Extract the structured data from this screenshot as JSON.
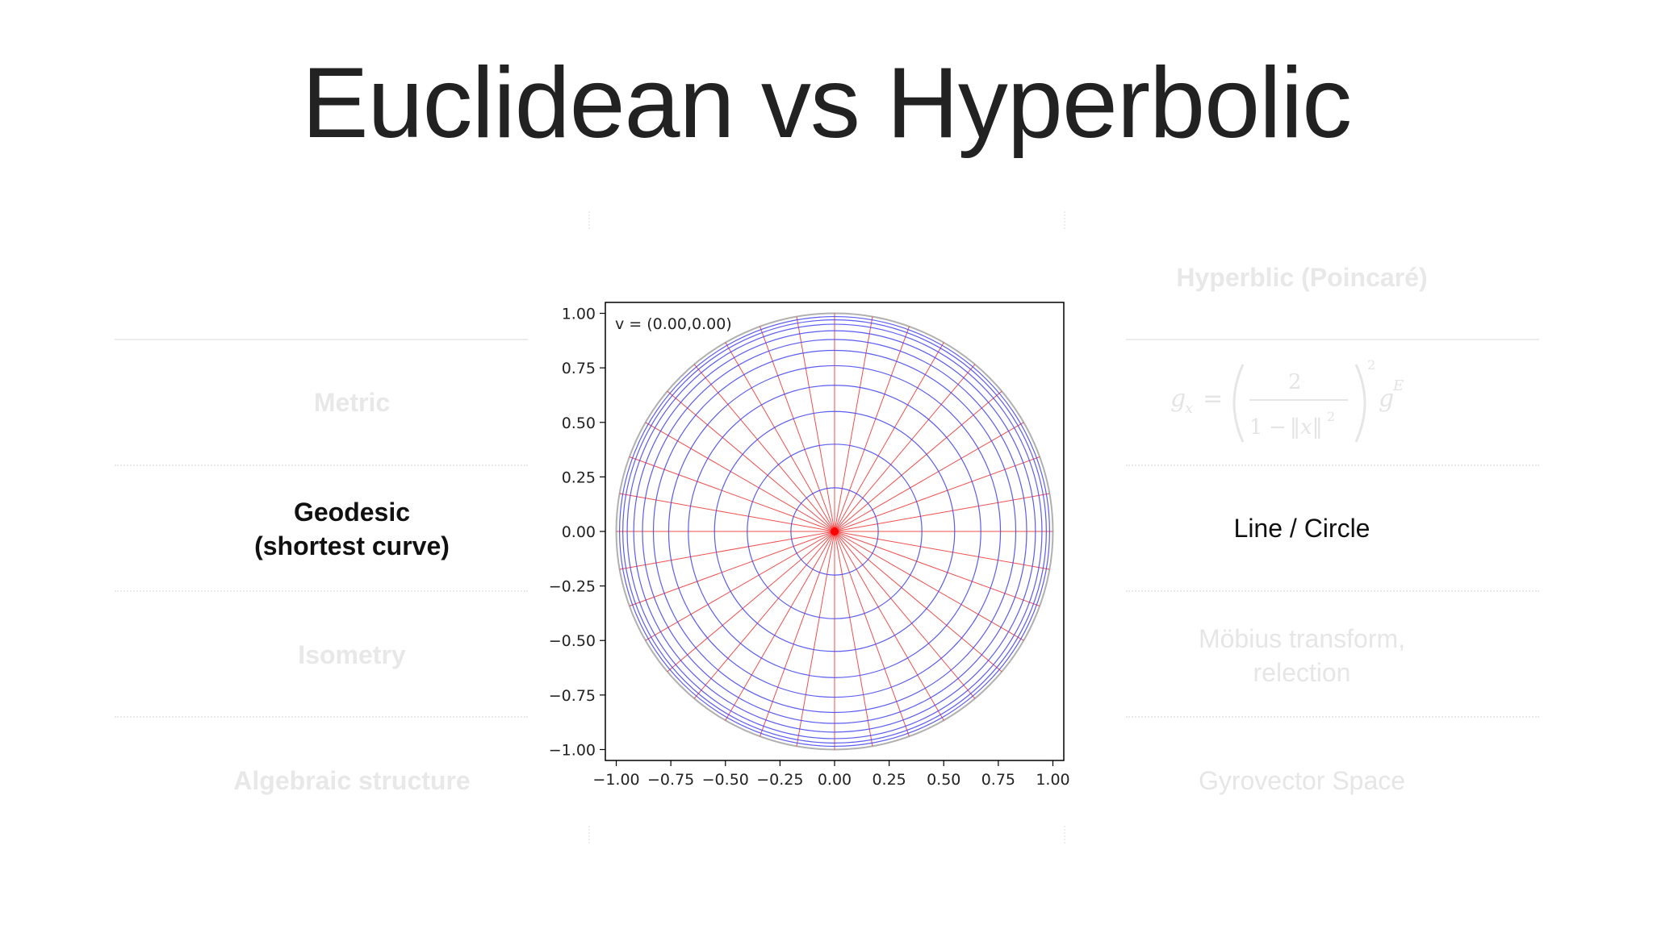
{
  "slide": {
    "title": "Euclidean vs Hyperbolic"
  },
  "table": {
    "right_header": "Hyperblic (Poincaré)",
    "rows": [
      {
        "left": "Metric",
        "right_formula": "g_x = (2 / (1 − ||x||^2))^2 g^E"
      },
      {
        "left_line1": "Geodesic",
        "left_line2": "(shortest curve)",
        "right": "Line / Circle"
      },
      {
        "left": "Isometry",
        "right_line1": "Möbius transform,",
        "right_line2": "relection"
      },
      {
        "left": "Algebraic structure",
        "right": "Gyrovector Space"
      }
    ]
  },
  "formula_parts": {
    "lhs": "g",
    "lhs_sub": "x",
    "eq": "=",
    "num": "2",
    "den_one": "1",
    "den_minus": "−",
    "den_x": "‖x‖",
    "den_sq": "2",
    "outer_sq": "2",
    "rhs": "g",
    "rhs_sup": "E"
  },
  "chart_data": {
    "type": "line",
    "annotation": "v = (0.00,0.00)",
    "xlim": [
      -1.05,
      1.05
    ],
    "ylim": [
      -1.05,
      1.05
    ],
    "xticks": [
      "−1.00",
      "−0.75",
      "−0.50",
      "−0.25",
      "0.00",
      "0.25",
      "0.50",
      "0.75",
      "1.00"
    ],
    "yticks": [
      "1.00",
      "0.75",
      "0.50",
      "0.25",
      "0.00",
      "−0.25",
      "−0.50",
      "−0.75",
      "−1.00"
    ],
    "tick_values": [
      -1.0,
      -0.75,
      -0.5,
      -0.25,
      0.0,
      0.25,
      0.5,
      0.75,
      1.0
    ],
    "circle_radii": [
      0.2,
      0.4,
      0.55,
      0.67,
      0.76,
      0.83,
      0.88,
      0.92,
      0.95,
      0.97,
      0.985
    ],
    "ray_count": 36,
    "boundary_radius": 1.0,
    "colors": {
      "circles": "#4040ee",
      "rays": "#ee3030",
      "boundary": "#b0b0b0",
      "center": "#ff0000"
    }
  }
}
